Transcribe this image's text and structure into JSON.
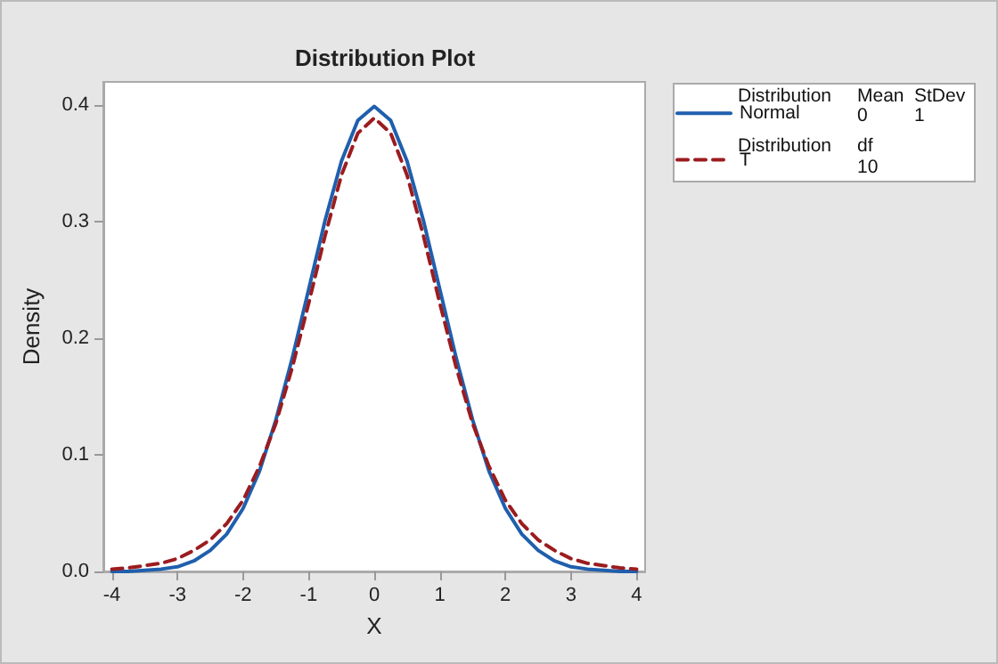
{
  "chart_data": {
    "type": "line",
    "title": "Distribution Plot",
    "xlabel": "X",
    "ylabel": "Density",
    "x": [
      -4,
      -3.75,
      -3.5,
      -3.25,
      -3,
      -2.75,
      -2.5,
      -2.25,
      -2,
      -1.75,
      -1.5,
      -1.25,
      -1,
      -0.75,
      -0.5,
      -0.25,
      0,
      0.25,
      0.5,
      0.75,
      1,
      1.25,
      1.5,
      1.75,
      2,
      2.25,
      2.5,
      2.75,
      3,
      3.25,
      3.5,
      3.75,
      4
    ],
    "series": [
      {
        "name": "Normal",
        "color": "#1f5fad",
        "line_style": "solid",
        "values": [
          0.0,
          0.0,
          0.001,
          0.002,
          0.004,
          0.009,
          0.018,
          0.032,
          0.054,
          0.086,
          0.13,
          0.183,
          0.242,
          0.301,
          0.352,
          0.387,
          0.399,
          0.387,
          0.352,
          0.301,
          0.242,
          0.183,
          0.13,
          0.086,
          0.054,
          0.032,
          0.018,
          0.009,
          0.004,
          0.002,
          0.001,
          0.0,
          0.0
        ]
      },
      {
        "name": "T",
        "color": "#9b1c1f",
        "line_style": "dashed",
        "values": [
          0.002,
          0.003,
          0.005,
          0.007,
          0.011,
          0.018,
          0.027,
          0.041,
          0.061,
          0.09,
          0.127,
          0.175,
          0.23,
          0.288,
          0.34,
          0.376,
          0.389,
          0.376,
          0.34,
          0.288,
          0.23,
          0.175,
          0.127,
          0.09,
          0.061,
          0.041,
          0.027,
          0.018,
          0.011,
          0.007,
          0.005,
          0.003,
          0.002
        ]
      }
    ],
    "xlim": [
      -4.13,
      4.13
    ],
    "xticks": [
      -4,
      -3,
      -2,
      -1,
      0,
      1,
      2,
      3,
      4
    ],
    "ylim": [
      0,
      0.42
    ],
    "yticks": [
      {
        "value": 0,
        "label": "0.0"
      },
      {
        "value": 0.1,
        "label": "0.1"
      },
      {
        "value": 0.2,
        "label": "0.2"
      },
      {
        "value": 0.3,
        "label": "0.3"
      },
      {
        "value": 0.4,
        "label": "0.4"
      }
    ],
    "annotations": [
      "Distribution",
      "Mean",
      "StDev",
      "0",
      "1",
      "Distribution",
      "df",
      "10"
    ],
    "legend": "top right",
    "grid": false,
    "marker": "none"
  }
}
